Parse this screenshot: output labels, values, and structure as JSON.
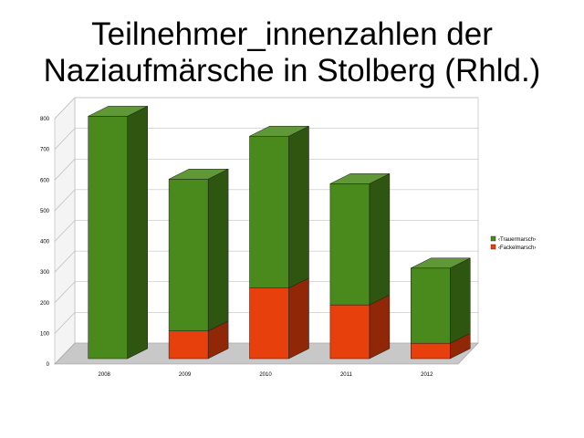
{
  "chart_data": {
    "type": "bar",
    "stacked": true,
    "three_d": true,
    "title_lines": [
      "Teilnehmer_innenzahlen der",
      "Naziaufmärsche in Stolberg (Rhld.)"
    ],
    "xlabel": "",
    "ylabel": "",
    "categories": [
      "2008",
      "2009",
      "2010",
      "2011",
      "2012"
    ],
    "ylim": [
      0,
      800
    ],
    "yticks": [
      "0",
      "100",
      "200",
      "300",
      "400",
      "500",
      "600",
      "700",
      "800"
    ],
    "grid": true,
    "legend_position": "right",
    "series": [
      {
        "name": "‹Fackelmarsch›",
        "color": "#e8400c",
        "values": [
          0,
          90,
          230,
          175,
          50
        ]
      },
      {
        "name": "‹Trauermarsch›",
        "color": "#4a8a1c",
        "values": [
          790,
          495,
          495,
          395,
          245
        ]
      }
    ]
  }
}
